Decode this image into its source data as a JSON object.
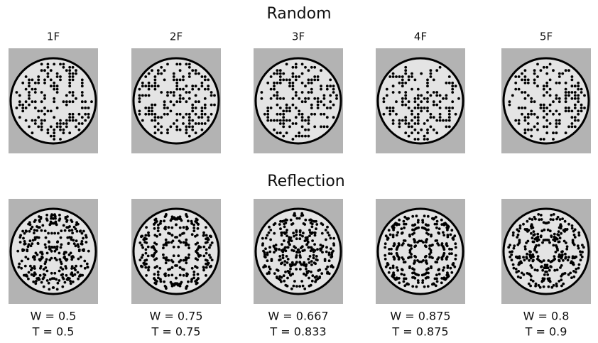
{
  "rows": [
    {
      "title": "Random"
    },
    {
      "title": "Reflection"
    }
  ],
  "columns": [
    "1F",
    "2F",
    "3F",
    "4F",
    "5F"
  ],
  "metrics": [
    {
      "w": "W = 0.5",
      "t": "T = 0.5"
    },
    {
      "w": "W = 0.75",
      "t": "T = 0.75"
    },
    {
      "w": "W = 0.667",
      "t": "T = 0.833"
    },
    {
      "w": "W = 0.875",
      "t": "T = 0.875"
    },
    {
      "w": "W = 0.8",
      "t": "T = 0.9"
    }
  ]
}
